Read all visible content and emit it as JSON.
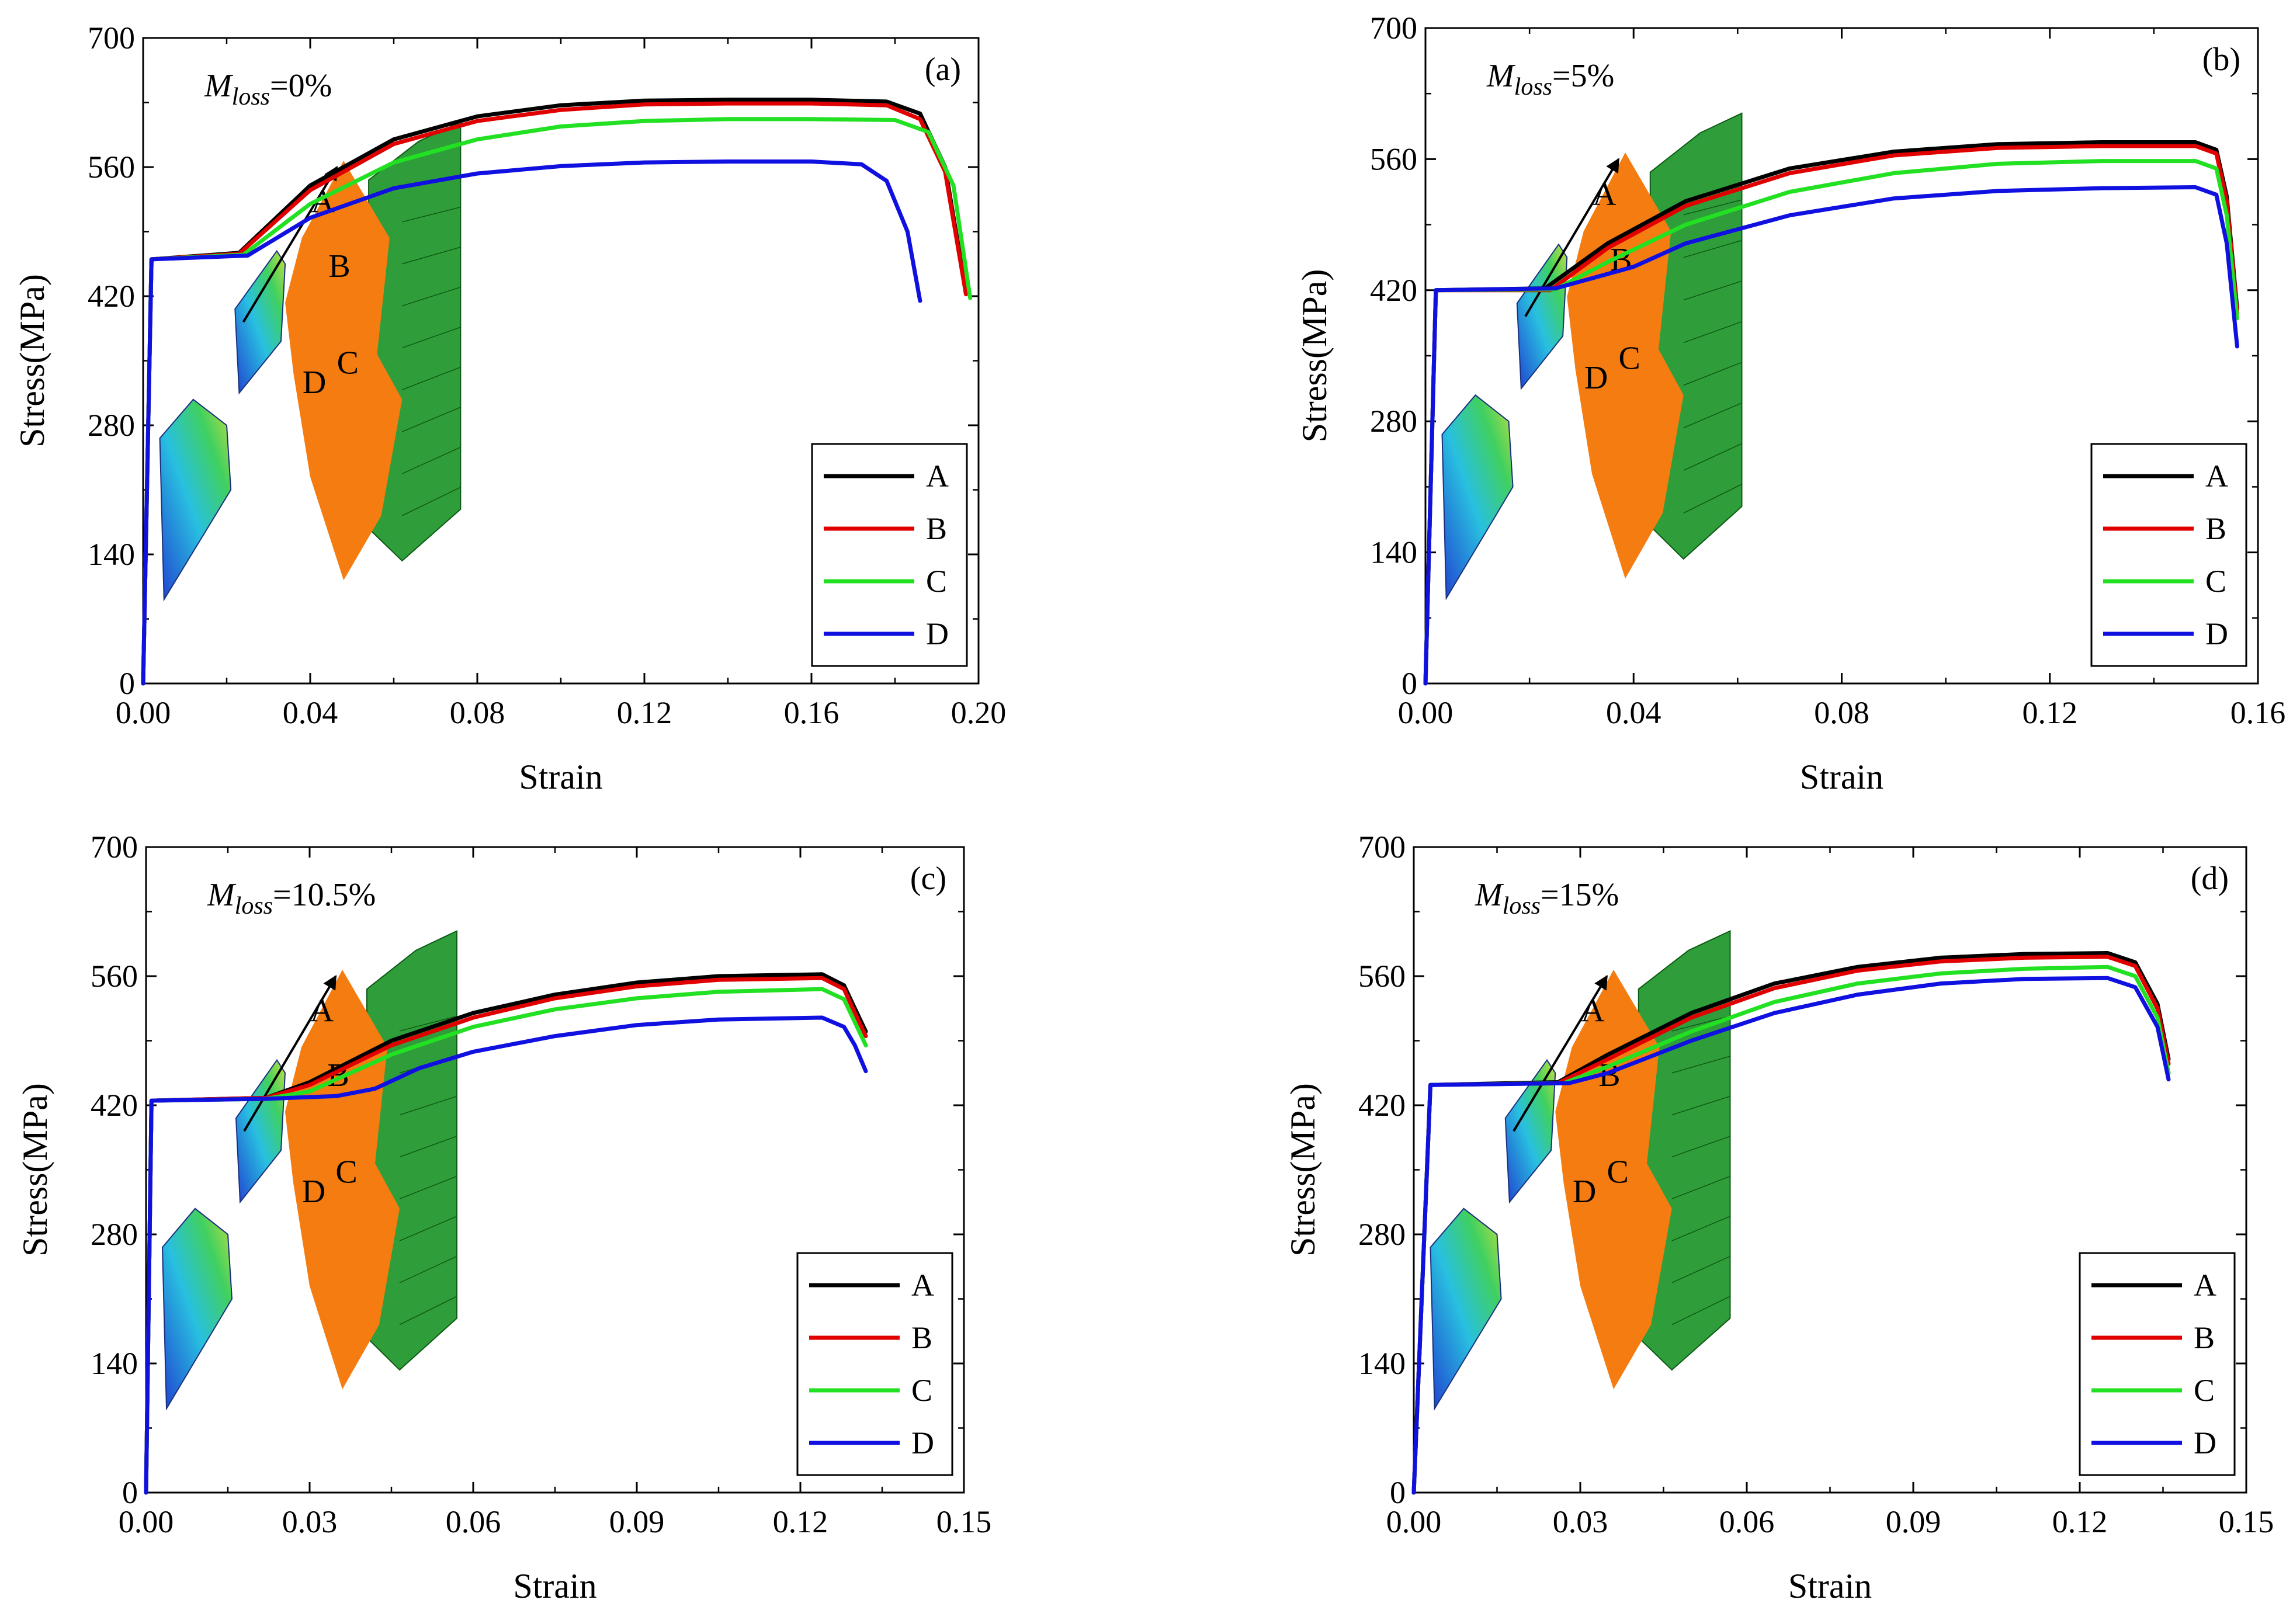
{
  "colors": {
    "A": "#000000",
    "B": "#e00000",
    "C": "#22e022",
    "D": "#1010e0"
  },
  "chart_data": [
    {
      "type": "line",
      "panel_label": "(a)",
      "mloss": {
        "symbol": "M",
        "sub": "loss",
        "value": "=0%"
      },
      "xlabel": "Strain",
      "ylabel": "Stress(MPa)",
      "xlim": [
        0,
        0.2
      ],
      "ylim": [
        0,
        700
      ],
      "xticks": [
        "0.00",
        "0.04",
        "0.08",
        "0.12",
        "0.16",
        "0.20"
      ],
      "yticks": [
        "0",
        "140",
        "280",
        "420",
        "560",
        "700"
      ],
      "grid": false,
      "legend": "bottom-right",
      "annotations": [
        "A",
        "B",
        "C",
        "D"
      ],
      "series": [
        {
          "name": "A",
          "x": [
            0,
            0.002,
            0.023,
            0.04,
            0.06,
            0.08,
            0.1,
            0.12,
            0.14,
            0.16,
            0.178,
            0.186,
            0.192,
            0.197
          ],
          "y": [
            0,
            460,
            467,
            540,
            590,
            615,
            627,
            632,
            633,
            633,
            631,
            618,
            560,
            425
          ]
        },
        {
          "name": "B",
          "x": [
            0,
            0.002,
            0.023,
            0.04,
            0.06,
            0.08,
            0.1,
            0.12,
            0.14,
            0.16,
            0.178,
            0.186,
            0.192,
            0.197
          ],
          "y": [
            0,
            460,
            466,
            535,
            585,
            610,
            622,
            628,
            629,
            629,
            627,
            612,
            555,
            422
          ]
        },
        {
          "name": "C",
          "x": [
            0,
            0.002,
            0.024,
            0.04,
            0.06,
            0.08,
            0.1,
            0.12,
            0.14,
            0.16,
            0.18,
            0.188,
            0.194,
            0.198
          ],
          "y": [
            0,
            460,
            465,
            520,
            565,
            590,
            604,
            610,
            612,
            612,
            611,
            598,
            540,
            418
          ]
        },
        {
          "name": "D",
          "x": [
            0,
            0.002,
            0.025,
            0.04,
            0.06,
            0.08,
            0.1,
            0.12,
            0.14,
            0.16,
            0.172,
            0.178,
            0.183,
            0.186
          ],
          "y": [
            0,
            460,
            464,
            505,
            537,
            553,
            561,
            565,
            566,
            566,
            563,
            545,
            490,
            415
          ]
        }
      ]
    },
    {
      "type": "line",
      "panel_label": "(b)",
      "mloss": {
        "symbol": "M",
        "sub": "loss",
        "value": "=5%"
      },
      "xlabel": "Strain",
      "ylabel": "Stress(MPa)",
      "xlim": [
        0,
        0.16
      ],
      "ylim": [
        0,
        700
      ],
      "xticks": [
        "0.00",
        "0.04",
        "0.08",
        "0.12",
        "0.16"
      ],
      "yticks": [
        "0",
        "140",
        "280",
        "420",
        "560",
        "700"
      ],
      "grid": false,
      "legend": "bottom-right",
      "annotations": [
        "A",
        "B",
        "C",
        "D"
      ],
      "series": [
        {
          "name": "A",
          "x": [
            0,
            0.002,
            0.023,
            0.035,
            0.05,
            0.07,
            0.09,
            0.11,
            0.13,
            0.148,
            0.152,
            0.154,
            0.156
          ],
          "y": [
            0,
            420,
            422,
            470,
            515,
            550,
            568,
            576,
            578,
            578,
            570,
            520,
            400
          ]
        },
        {
          "name": "B",
          "x": [
            0,
            0.002,
            0.024,
            0.035,
            0.05,
            0.07,
            0.09,
            0.11,
            0.13,
            0.148,
            0.152,
            0.154,
            0.156
          ],
          "y": [
            0,
            420,
            420,
            465,
            510,
            545,
            564,
            572,
            574,
            574,
            566,
            515,
            396
          ]
        },
        {
          "name": "C",
          "x": [
            0,
            0.002,
            0.025,
            0.035,
            0.05,
            0.07,
            0.09,
            0.11,
            0.13,
            0.148,
            0.152,
            0.154,
            0.156
          ],
          "y": [
            0,
            420,
            421,
            450,
            490,
            525,
            545,
            555,
            558,
            558,
            550,
            500,
            390
          ]
        },
        {
          "name": "D",
          "x": [
            0,
            0.002,
            0.025,
            0.04,
            0.05,
            0.07,
            0.09,
            0.11,
            0.13,
            0.148,
            0.152,
            0.154,
            0.156
          ],
          "y": [
            0,
            420,
            422,
            445,
            470,
            500,
            518,
            526,
            529,
            530,
            522,
            470,
            360
          ]
        }
      ]
    },
    {
      "type": "line",
      "panel_label": "(c)",
      "mloss": {
        "symbol": "M",
        "sub": "loss",
        "value": "=10.5%"
      },
      "xlabel": "Strain",
      "ylabel": "Stress(MPa)",
      "xlim": [
        0,
        0.15
      ],
      "ylim": [
        0,
        700
      ],
      "xticks": [
        "0.00",
        "0.03",
        "0.06",
        "0.09",
        "0.12",
        "0.15"
      ],
      "yticks": [
        "0",
        "140",
        "280",
        "420",
        "560",
        "700"
      ],
      "grid": false,
      "legend": "bottom-right",
      "annotations": [
        "A",
        "B",
        "C",
        "D"
      ],
      "series": [
        {
          "name": "A",
          "x": [
            0,
            0.001,
            0.022,
            0.03,
            0.045,
            0.06,
            0.075,
            0.09,
            0.105,
            0.124,
            0.128,
            0.13,
            0.132
          ],
          "y": [
            0,
            425,
            428,
            445,
            490,
            520,
            540,
            553,
            560,
            562,
            550,
            525,
            500
          ]
        },
        {
          "name": "B",
          "x": [
            0,
            0.001,
            0.022,
            0.03,
            0.045,
            0.06,
            0.075,
            0.09,
            0.105,
            0.124,
            0.128,
            0.13,
            0.132
          ],
          "y": [
            0,
            425,
            428,
            442,
            485,
            515,
            536,
            549,
            556,
            558,
            546,
            520,
            495
          ]
        },
        {
          "name": "C",
          "x": [
            0,
            0.001,
            0.022,
            0.03,
            0.045,
            0.06,
            0.075,
            0.09,
            0.105,
            0.124,
            0.128,
            0.13,
            0.132
          ],
          "y": [
            0,
            425,
            427,
            435,
            475,
            505,
            524,
            536,
            543,
            546,
            535,
            510,
            485
          ]
        },
        {
          "name": "D",
          "x": [
            0,
            0.001,
            0.022,
            0.035,
            0.042,
            0.05,
            0.06,
            0.075,
            0.09,
            0.105,
            0.124,
            0.128,
            0.13,
            0.132
          ],
          "y": [
            0,
            425,
            427,
            430,
            438,
            460,
            478,
            495,
            507,
            513,
            515,
            505,
            485,
            457
          ]
        }
      ]
    },
    {
      "type": "line",
      "panel_label": "(d)",
      "mloss": {
        "symbol": "M",
        "sub": "loss",
        "value": "=15%"
      },
      "xlabel": "Strain",
      "ylabel": "Stress(MPa)",
      "xlim": [
        0,
        0.15
      ],
      "ylim": [
        0,
        700
      ],
      "xticks": [
        "0.00",
        "0.03",
        "0.06",
        "0.09",
        "0.12",
        "0.15"
      ],
      "yticks": [
        "0",
        "140",
        "280",
        "420",
        "560",
        "700"
      ],
      "grid": false,
      "legend": "bottom-right",
      "annotations": [
        "A",
        "B",
        "C",
        "D"
      ],
      "series": [
        {
          "name": "A",
          "x": [
            0,
            0.003,
            0.026,
            0.035,
            0.05,
            0.065,
            0.08,
            0.095,
            0.11,
            0.125,
            0.13,
            0.134,
            0.136
          ],
          "y": [
            0,
            442,
            445,
            475,
            520,
            552,
            570,
            580,
            584,
            585,
            575,
            530,
            470
          ]
        },
        {
          "name": "B",
          "x": [
            0,
            0.003,
            0.026,
            0.035,
            0.05,
            0.065,
            0.08,
            0.095,
            0.11,
            0.125,
            0.13,
            0.134,
            0.136
          ],
          "y": [
            0,
            442,
            444,
            470,
            515,
            547,
            566,
            576,
            580,
            581,
            571,
            525,
            465
          ]
        },
        {
          "name": "C",
          "x": [
            0,
            0.003,
            0.027,
            0.035,
            0.05,
            0.065,
            0.08,
            0.095,
            0.11,
            0.125,
            0.13,
            0.134,
            0.136
          ],
          "y": [
            0,
            442,
            444,
            462,
            500,
            532,
            552,
            563,
            568,
            570,
            560,
            515,
            455
          ]
        },
        {
          "name": "D",
          "x": [
            0,
            0.003,
            0.028,
            0.035,
            0.05,
            0.065,
            0.08,
            0.095,
            0.11,
            0.125,
            0.13,
            0.134,
            0.136
          ],
          "y": [
            0,
            442,
            444,
            455,
            490,
            520,
            540,
            552,
            557,
            558,
            548,
            505,
            448
          ]
        }
      ]
    }
  ]
}
